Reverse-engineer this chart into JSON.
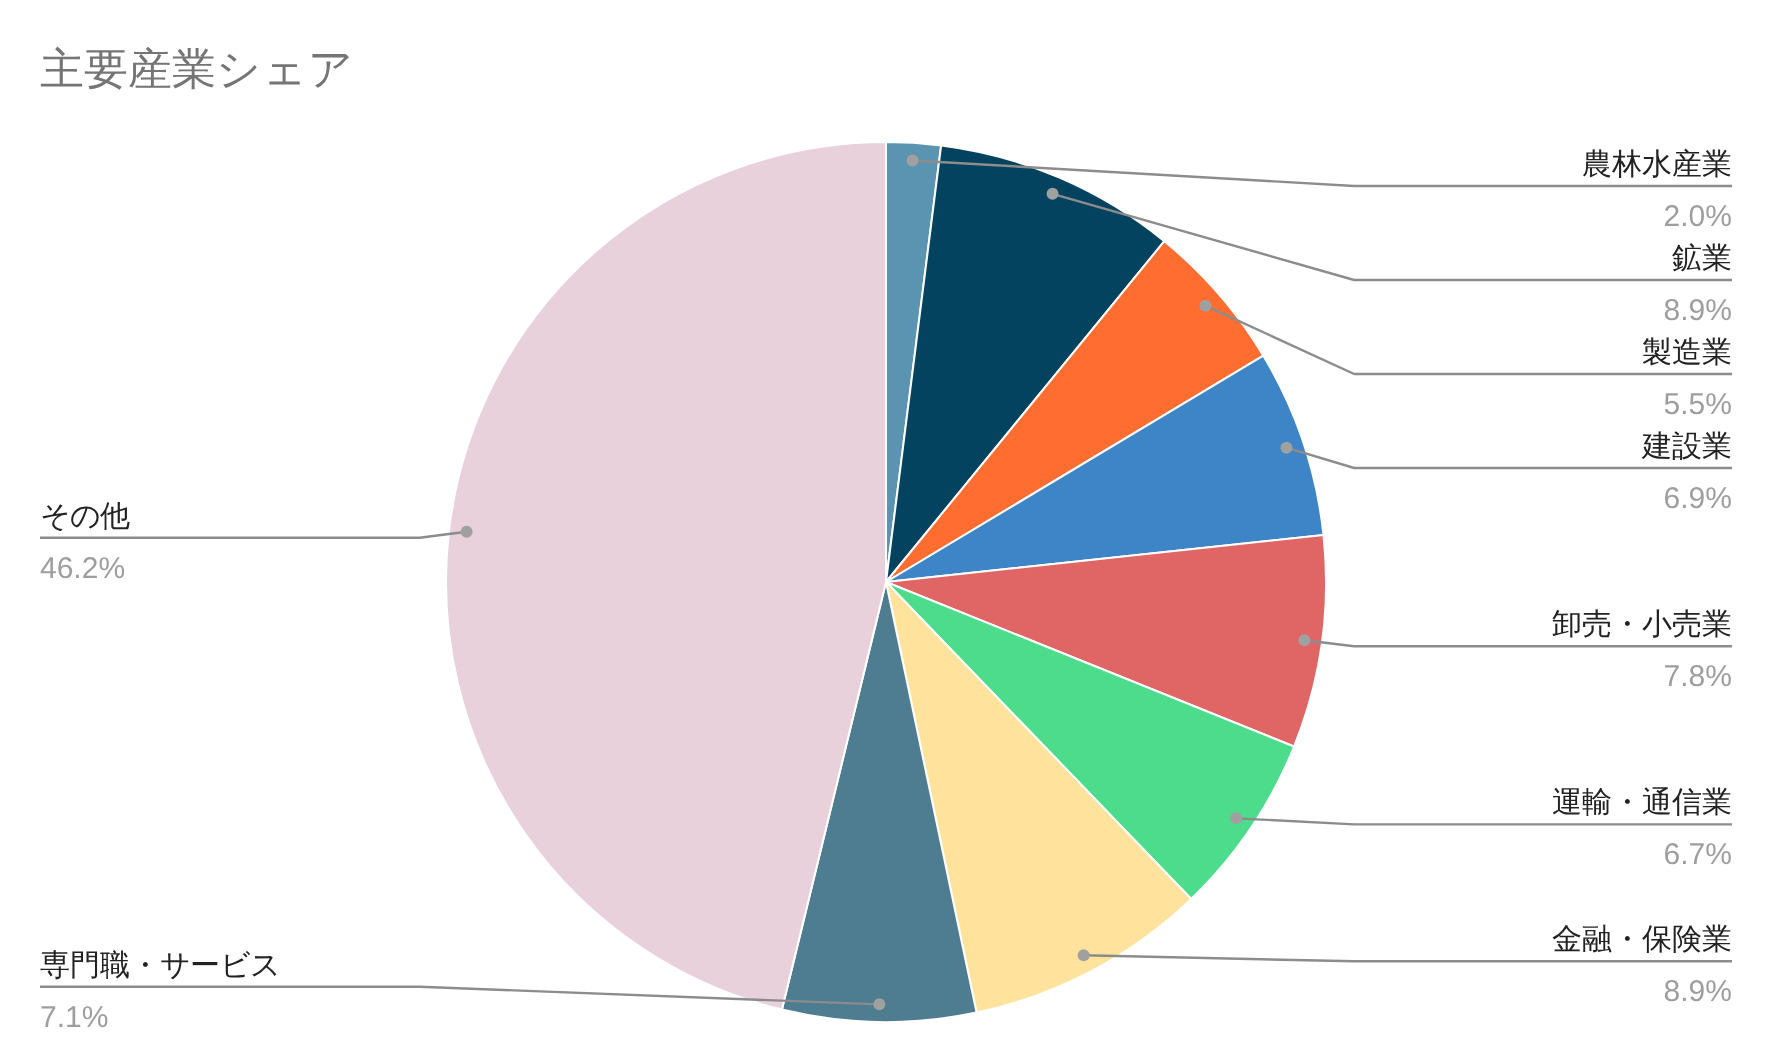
{
  "chart_data": {
    "type": "pie",
    "title": "主要産業シェア",
    "categories": [
      "農林水産業",
      "鉱業",
      "製造業",
      "建設業",
      "卸売・小売業",
      "運輸・通信業",
      "金融・保険業",
      "専門職・サービス",
      "その他"
    ],
    "values": [
      2.0,
      8.9,
      5.5,
      6.9,
      7.8,
      6.7,
      8.9,
      7.1,
      46.2
    ],
    "colors": [
      "#5b94b1",
      "#03435f",
      "#ff6d31",
      "#3d85c6",
      "#e06666",
      "#4cdc8b",
      "#ffe39c",
      "#4e7c91",
      "#e9d1dc"
    ],
    "value_labels": [
      "2.0%",
      "8.9%",
      "5.5%",
      "6.9%",
      "7.8%",
      "6.7%",
      "8.9%",
      "7.1%",
      "46.2%"
    ]
  }
}
